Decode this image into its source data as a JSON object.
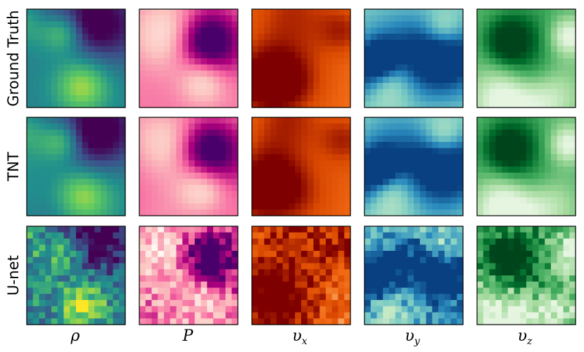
{
  "rows": [
    {
      "label": "Ground Truth",
      "variant": "smooth"
    },
    {
      "label": "TNT",
      "variant": "smooth"
    },
    {
      "label": "U-net",
      "variant": "noisy"
    }
  ],
  "columns": [
    {
      "symbol": "ρ",
      "sub": "",
      "colormap": "viridis"
    },
    {
      "symbol": "P",
      "sub": "",
      "colormap": "magenta-white"
    },
    {
      "symbol": "υ",
      "sub": "x",
      "colormap": "red-orange"
    },
    {
      "symbol": "υ",
      "sub": "y",
      "colormap": "blue-green"
    },
    {
      "symbol": "υ",
      "sub": "z",
      "colormap": "green"
    }
  ],
  "colormaps": {
    "viridis": [
      "#440154",
      "#3b528b",
      "#21908d",
      "#5dc963",
      "#fde725"
    ],
    "magenta-white": [
      "#fff7f3",
      "#fcc5c0",
      "#f768a1",
      "#ae017e",
      "#49006a"
    ],
    "red-orange": [
      "#fff5eb",
      "#fdbe85",
      "#f16913",
      "#d94801",
      "#7f0000"
    ],
    "blue-green": [
      "#f7fcf0",
      "#ccebc5",
      "#7bccc4",
      "#2b8cbe",
      "#084081"
    ],
    "green": [
      "#e5f5e0",
      "#a1d99b",
      "#41ab5d",
      "#006d2c",
      "#00441b"
    ]
  }
}
